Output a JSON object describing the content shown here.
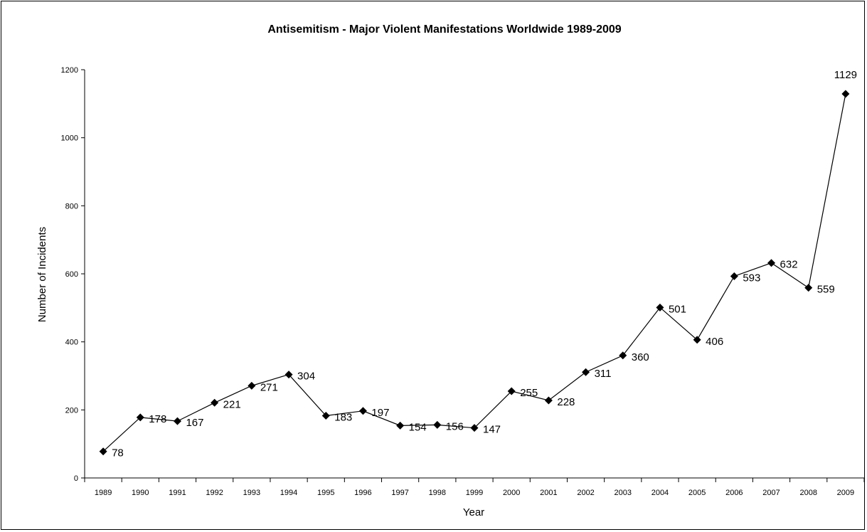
{
  "chart_data": {
    "type": "line",
    "title": "Antisemitism -  Major Violent Manifestations Worldwide 1989-2009",
    "xlabel": "Year",
    "ylabel": "Number of Incidents",
    "ylim": [
      0,
      1200
    ],
    "yticks": [
      "0",
      "200",
      "400",
      "600",
      "800",
      "1000",
      "1200"
    ],
    "grid": false,
    "legend": "none",
    "marker": "diamond",
    "line_color": "#000000",
    "categories": [
      "1989",
      "1990",
      "1991",
      "1992",
      "1993",
      "1994",
      "1995",
      "1996",
      "1997",
      "1998",
      "1999",
      "2000",
      "2001",
      "2002",
      "2003",
      "2004",
      "2005",
      "2006",
      "2007",
      "2008",
      "2009"
    ],
    "values": [
      78,
      178,
      167,
      221,
      271,
      304,
      183,
      197,
      154,
      156,
      147,
      255,
      228,
      311,
      360,
      501,
      406,
      593,
      632,
      559,
      1129
    ]
  }
}
